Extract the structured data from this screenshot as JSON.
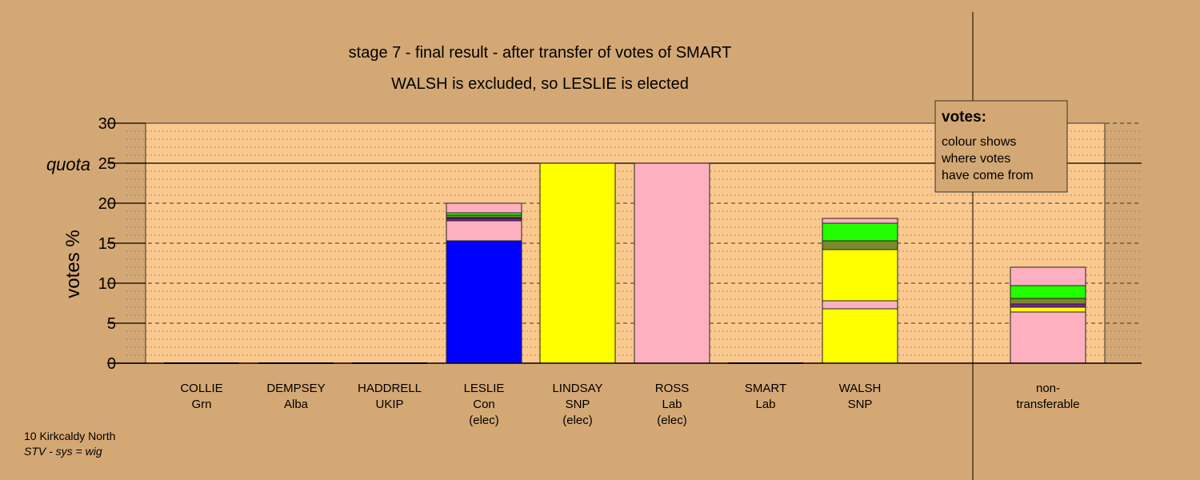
{
  "colors": {
    "background": "#d4a874",
    "plot_area": "#fbc98e",
    "Con": "#0000ff",
    "SNP": "#ffff00",
    "Lab": "#ffb0c0",
    "Grn": "#22ff00",
    "Alba": "#7a8a2a",
    "UKIP": "#7b1fa2"
  },
  "chart_data": {
    "type": "bar",
    "stacked": true,
    "title": "stage 7 - final result - after transfer of votes of SMART",
    "subtitle": "WALSH is excluded, so LESLIE is elected",
    "ylabel": "votes %",
    "ylim": [
      0,
      30
    ],
    "yticks": [
      "0",
      "5",
      "10",
      "15",
      "20",
      "25",
      "30"
    ],
    "quota": {
      "label": "quota",
      "value": 25
    },
    "grid": true,
    "categories": [
      {
        "name": "COLLIE",
        "party": "Grn",
        "note": ""
      },
      {
        "name": "DEMPSEY",
        "party": "Alba",
        "note": ""
      },
      {
        "name": "HADDRELL",
        "party": "UKIP",
        "note": ""
      },
      {
        "name": "LESLIE",
        "party": "Con",
        "note": "(elec)"
      },
      {
        "name": "LINDSAY",
        "party": "SNP",
        "note": "(elec)"
      },
      {
        "name": "ROSS",
        "party": "Lab",
        "note": "(elec)"
      },
      {
        "name": "SMART",
        "party": "Lab",
        "note": ""
      },
      {
        "name": "WALSH",
        "party": "SNP",
        "note": ""
      },
      {
        "name": "non-",
        "party": "transferable",
        "note": ""
      }
    ],
    "stacks": [
      [],
      [],
      [],
      [
        {
          "source": "Con",
          "value": 15.3
        },
        {
          "source": "Lab",
          "value": 2.5
        },
        {
          "source": "UKIP",
          "value": 0.3
        },
        {
          "source": "SNP",
          "value": 0.1
        },
        {
          "source": "Alba",
          "value": 0.3
        },
        {
          "source": "Grn",
          "value": 0.3
        },
        {
          "source": "Lab",
          "value": 1.2
        }
      ],
      [
        {
          "source": "SNP",
          "value": 25.0
        }
      ],
      [
        {
          "source": "Lab",
          "value": 25.0
        }
      ],
      [],
      [
        {
          "source": "SNP",
          "value": 6.8
        },
        {
          "source": "Lab",
          "value": 1.0
        },
        {
          "source": "SNP",
          "value": 6.4
        },
        {
          "source": "Alba",
          "value": 1.1
        },
        {
          "source": "Grn",
          "value": 2.2
        },
        {
          "source": "Lab",
          "value": 0.6
        }
      ],
      [
        {
          "source": "Lab",
          "value": 6.4
        },
        {
          "source": "SNP",
          "value": 0.6
        },
        {
          "source": "UKIP",
          "value": 0.4
        },
        {
          "source": "Alba",
          "value": 0.7
        },
        {
          "source": "Grn",
          "value": 1.6
        },
        {
          "source": "Lab",
          "value": 2.3
        }
      ]
    ]
  },
  "legend": {
    "title": "votes:",
    "lines": [
      "colour shows",
      "where votes",
      "have come from"
    ]
  },
  "footer": {
    "line1": "10 Kirkcaldy North",
    "line2": "STV - sys = wig"
  }
}
